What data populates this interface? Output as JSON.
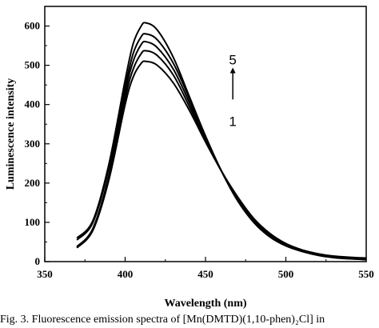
{
  "caption": "Fig. 3.   Fluorescence emission spectra of [Mn(DMTD)(1,10-phen)₂Cl] in",
  "chart_data": {
    "type": "line",
    "xlabel": "Wavelength (nm)",
    "ylabel": "Luminescence intensity",
    "xlim": [
      350,
      550
    ],
    "ylim": [
      0,
      650
    ],
    "xticks": [
      350,
      400,
      450,
      500,
      550
    ],
    "yticks": [
      0,
      100,
      200,
      300,
      400,
      500,
      600
    ],
    "grid": false,
    "annotations": [
      {
        "text": "5",
        "at": [
          467,
          515
        ]
      },
      {
        "text": "1",
        "at": [
          467,
          358
        ]
      }
    ],
    "arrow": {
      "from": [
        467,
        413
      ],
      "to": [
        467,
        494
      ]
    },
    "series": [
      {
        "x": [
          370,
          380,
          390,
          400,
          405,
          410,
          413,
          420,
          430,
          440,
          450,
          460,
          470,
          480,
          490,
          500,
          510,
          520,
          530,
          540,
          550
        ],
        "y": [
          35,
          80,
          210,
          400,
          470,
          505,
          510,
          500,
          455,
          385,
          305,
          230,
          165,
          110,
          72,
          46,
          30,
          20,
          14,
          11,
          9
        ]
      },
      {
        "x": [
          370,
          380,
          390,
          400,
          405,
          410,
          413,
          420,
          430,
          440,
          450,
          460,
          470,
          480,
          490,
          500,
          510,
          520,
          530,
          540,
          550
        ],
        "y": [
          36,
          82,
          215,
          415,
          490,
          530,
          537,
          525,
          475,
          395,
          310,
          230,
          162,
          107,
          70,
          45,
          29,
          19,
          13,
          10,
          8
        ]
      },
      {
        "x": [
          370,
          380,
          390,
          400,
          405,
          410,
          413,
          420,
          430,
          440,
          450,
          460,
          470,
          480,
          490,
          500,
          510,
          520,
          530,
          540,
          550
        ],
        "y": [
          38,
          85,
          222,
          430,
          510,
          553,
          560,
          545,
          490,
          405,
          313,
          230,
          160,
          104,
          67,
          43,
          28,
          18,
          12,
          9,
          7
        ]
      },
      {
        "x": [
          370,
          380,
          390,
          400,
          405,
          410,
          413,
          420,
          430,
          440,
          450,
          460,
          470,
          480,
          490,
          500,
          510,
          520,
          530,
          540,
          550
        ],
        "y": [
          55,
          100,
          240,
          445,
          530,
          573,
          580,
          565,
          505,
          415,
          318,
          230,
          158,
          102,
          65,
          42,
          27,
          17,
          11,
          8,
          6
        ]
      },
      {
        "x": [
          370,
          380,
          390,
          400,
          405,
          410,
          413,
          420,
          430,
          440,
          450,
          460,
          470,
          480,
          490,
          500,
          510,
          520,
          530,
          540,
          550
        ],
        "y": [
          60,
          105,
          250,
          462,
          555,
          600,
          608,
          590,
          520,
          420,
          320,
          230,
          155,
          100,
          63,
          40,
          26,
          16,
          10,
          7,
          5
        ]
      }
    ]
  }
}
